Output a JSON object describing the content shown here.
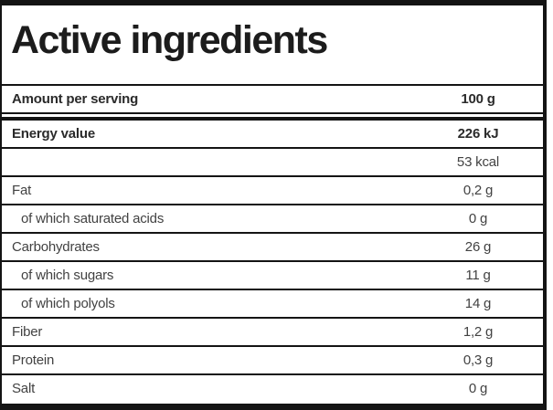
{
  "title": "Active ingredients",
  "colors": {
    "border": "#141414",
    "title_text": "#1c1c1c",
    "bold_text": "#2a2a2a",
    "regular_text": "#424242",
    "background": "#ffffff"
  },
  "table": {
    "columns": {
      "label_header": "Amount per serving",
      "value_header": "100 g"
    },
    "rows": [
      {
        "label": "Energy value",
        "value": "226 kJ",
        "bold": true,
        "indent": false
      },
      {
        "label": "",
        "value": "53 kcal",
        "bold": false,
        "indent": false
      },
      {
        "label": "Fat",
        "value": "0,2 g",
        "bold": false,
        "indent": false
      },
      {
        "label": "of which saturated acids",
        "value": "0 g",
        "bold": false,
        "indent": true
      },
      {
        "label": "Carbohydrates",
        "value": "26 g",
        "bold": false,
        "indent": false
      },
      {
        "label": "of which sugars",
        "value": "11 g",
        "bold": false,
        "indent": true
      },
      {
        "label": "of which polyols",
        "value": "14 g",
        "bold": false,
        "indent": true
      },
      {
        "label": "Fiber",
        "value": "1,2 g",
        "bold": false,
        "indent": false
      },
      {
        "label": "Protein",
        "value": "0,3 g",
        "bold": false,
        "indent": false
      },
      {
        "label": "Salt",
        "value": "0 g",
        "bold": false,
        "indent": false
      }
    ]
  }
}
